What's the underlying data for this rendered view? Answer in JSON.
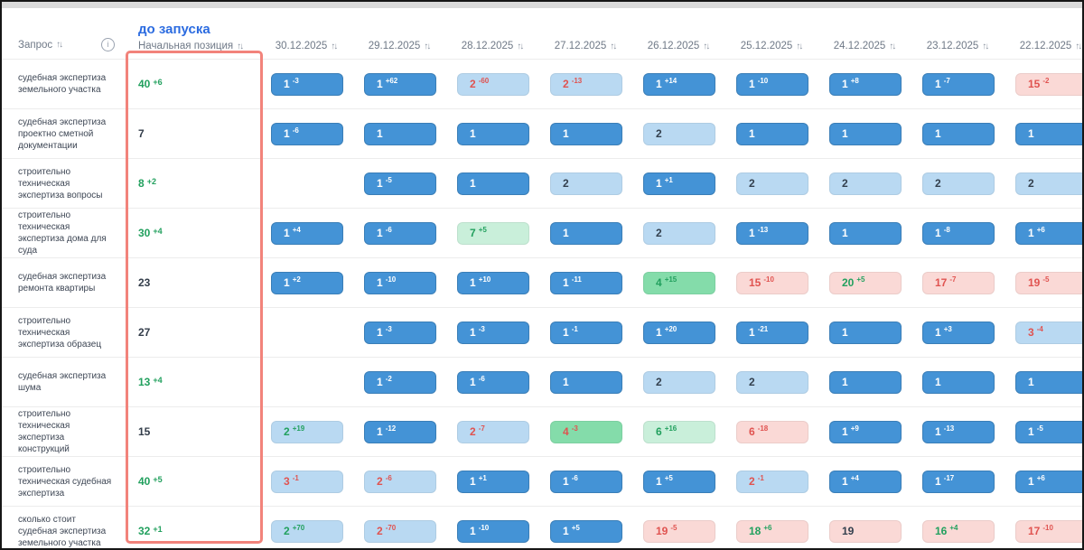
{
  "table": {
    "query_header": "Запрос",
    "sort_glyph": "↑↓",
    "info_glyph": "i",
    "pre_launch": "до запуска",
    "start_header": "Начальная позиция",
    "dates": [
      "30.12.2025",
      "29.12.2025",
      "28.12.2025",
      "27.12.2025",
      "26.12.2025",
      "25.12.2025",
      "24.12.2025",
      "23.12.2025",
      "22.12.2025"
    ],
    "rows": [
      {
        "query": "судебная экспертиза земельного участка",
        "start": {
          "v": "40",
          "d": "+6"
        },
        "cells": [
          {
            "v": "1",
            "d": "-3",
            "bg": "blue",
            "vc": "white",
            "dc": "white"
          },
          {
            "v": "1",
            "d": "+62",
            "bg": "blue",
            "vc": "white",
            "dc": "white"
          },
          {
            "v": "2",
            "d": "-60",
            "bg": "light",
            "vc": "red",
            "dc": "red"
          },
          {
            "v": "2",
            "d": "-13",
            "bg": "light",
            "vc": "red",
            "dc": "red"
          },
          {
            "v": "1",
            "d": "+14",
            "bg": "blue",
            "vc": "white",
            "dc": "white"
          },
          {
            "v": "1",
            "d": "-10",
            "bg": "blue",
            "vc": "white",
            "dc": "white"
          },
          {
            "v": "1",
            "d": "+8",
            "bg": "blue",
            "vc": "white",
            "dc": "white"
          },
          {
            "v": "1",
            "d": "-7",
            "bg": "blue",
            "vc": "white",
            "dc": "white"
          },
          {
            "v": "15",
            "d": "-2",
            "bg": "pink",
            "vc": "red",
            "dc": "red"
          }
        ]
      },
      {
        "query": "судебная экспертиза проектно сметной документации",
        "start": {
          "v": "7",
          "d": ""
        },
        "cells": [
          {
            "v": "1",
            "d": "-6",
            "bg": "blue",
            "vc": "white",
            "dc": "white"
          },
          {
            "v": "1",
            "d": "",
            "bg": "blue",
            "vc": "white",
            "dc": "white"
          },
          {
            "v": "1",
            "d": "",
            "bg": "blue",
            "vc": "white",
            "dc": "white"
          },
          {
            "v": "1",
            "d": "",
            "bg": "blue",
            "vc": "white",
            "dc": "white"
          },
          {
            "v": "2",
            "d": "",
            "bg": "light",
            "vc": "dark",
            "dc": "dark"
          },
          {
            "v": "1",
            "d": "",
            "bg": "blue",
            "vc": "white",
            "dc": "white"
          },
          {
            "v": "1",
            "d": "",
            "bg": "blue",
            "vc": "white",
            "dc": "white"
          },
          {
            "v": "1",
            "d": "",
            "bg": "blue",
            "vc": "white",
            "dc": "white"
          },
          {
            "v": "1",
            "d": "",
            "bg": "blue",
            "vc": "white",
            "dc": "white"
          }
        ]
      },
      {
        "query": "строительно техническая экспертиза вопросы",
        "start": {
          "v": "8",
          "d": "+2"
        },
        "cells": [
          null,
          {
            "v": "1",
            "d": "-5",
            "bg": "blue",
            "vc": "white",
            "dc": "white"
          },
          {
            "v": "1",
            "d": "",
            "bg": "blue",
            "vc": "white",
            "dc": "white"
          },
          {
            "v": "2",
            "d": "",
            "bg": "light",
            "vc": "dark",
            "dc": "dark"
          },
          {
            "v": "1",
            "d": "+1",
            "bg": "blue",
            "vc": "white",
            "dc": "white"
          },
          {
            "v": "2",
            "d": "",
            "bg": "light",
            "vc": "dark",
            "dc": "dark"
          },
          {
            "v": "2",
            "d": "",
            "bg": "light",
            "vc": "dark",
            "dc": "dark"
          },
          {
            "v": "2",
            "d": "",
            "bg": "light",
            "vc": "dark",
            "dc": "dark"
          },
          {
            "v": "2",
            "d": "",
            "bg": "light",
            "vc": "dark",
            "dc": "dark"
          }
        ]
      },
      {
        "query": "строительно техническая экспертиза дома для суда",
        "start": {
          "v": "30",
          "d": "+4"
        },
        "cells": [
          {
            "v": "1",
            "d": "+4",
            "bg": "blue",
            "vc": "white",
            "dc": "white"
          },
          {
            "v": "1",
            "d": "-6",
            "bg": "blue",
            "vc": "white",
            "dc": "white"
          },
          {
            "v": "7",
            "d": "+5",
            "bg": "mint",
            "vc": "green",
            "dc": "green"
          },
          {
            "v": "1",
            "d": "",
            "bg": "blue",
            "vc": "white",
            "dc": "white"
          },
          {
            "v": "2",
            "d": "",
            "bg": "light",
            "vc": "dark",
            "dc": "dark"
          },
          {
            "v": "1",
            "d": "-13",
            "bg": "blue",
            "vc": "white",
            "dc": "white"
          },
          {
            "v": "1",
            "d": "",
            "bg": "blue",
            "vc": "white",
            "dc": "white"
          },
          {
            "v": "1",
            "d": "-8",
            "bg": "blue",
            "vc": "white",
            "dc": "white"
          },
          {
            "v": "1",
            "d": "+6",
            "bg": "blue",
            "vc": "white",
            "dc": "white"
          }
        ]
      },
      {
        "query": "судебная экспертиза ремонта квартиры",
        "start": {
          "v": "23",
          "d": ""
        },
        "cells": [
          {
            "v": "1",
            "d": "+2",
            "bg": "blue",
            "vc": "white",
            "dc": "white"
          },
          {
            "v": "1",
            "d": "-10",
            "bg": "blue",
            "vc": "white",
            "dc": "white"
          },
          {
            "v": "1",
            "d": "+10",
            "bg": "blue",
            "vc": "white",
            "dc": "white"
          },
          {
            "v": "1",
            "d": "-11",
            "bg": "blue",
            "vc": "white",
            "dc": "white"
          },
          {
            "v": "4",
            "d": "+15",
            "bg": "green",
            "vc": "green",
            "dc": "green"
          },
          {
            "v": "15",
            "d": "-10",
            "bg": "pink",
            "vc": "red",
            "dc": "red"
          },
          {
            "v": "20",
            "d": "+5",
            "bg": "pink",
            "vc": "green",
            "dc": "green"
          },
          {
            "v": "17",
            "d": "-7",
            "bg": "pink",
            "vc": "red",
            "dc": "red"
          },
          {
            "v": "19",
            "d": "-5",
            "bg": "pink",
            "vc": "red",
            "dc": "red"
          }
        ]
      },
      {
        "query": "строительно техническая экспертиза образец",
        "start": {
          "v": "27",
          "d": ""
        },
        "cells": [
          null,
          {
            "v": "1",
            "d": "-3",
            "bg": "blue",
            "vc": "white",
            "dc": "white"
          },
          {
            "v": "1",
            "d": "-3",
            "bg": "blue",
            "vc": "white",
            "dc": "white"
          },
          {
            "v": "1",
            "d": "-1",
            "bg": "blue",
            "vc": "white",
            "dc": "white"
          },
          {
            "v": "1",
            "d": "+20",
            "bg": "blue",
            "vc": "white",
            "dc": "white"
          },
          {
            "v": "1",
            "d": "-21",
            "bg": "blue",
            "vc": "white",
            "dc": "white"
          },
          {
            "v": "1",
            "d": "",
            "bg": "blue",
            "vc": "white",
            "dc": "white"
          },
          {
            "v": "1",
            "d": "+3",
            "bg": "blue",
            "vc": "white",
            "dc": "white"
          },
          {
            "v": "3",
            "d": "-4",
            "bg": "light",
            "vc": "red",
            "dc": "red"
          }
        ]
      },
      {
        "query": "судебная экспертиза шума",
        "start": {
          "v": "13",
          "d": "+4"
        },
        "cells": [
          null,
          {
            "v": "1",
            "d": "-2",
            "bg": "blue",
            "vc": "white",
            "dc": "white"
          },
          {
            "v": "1",
            "d": "-6",
            "bg": "blue",
            "vc": "white",
            "dc": "white"
          },
          {
            "v": "1",
            "d": "",
            "bg": "blue",
            "vc": "white",
            "dc": "white"
          },
          {
            "v": "2",
            "d": "",
            "bg": "light",
            "vc": "dark",
            "dc": "dark"
          },
          {
            "v": "2",
            "d": "",
            "bg": "light",
            "vc": "dark",
            "dc": "dark"
          },
          {
            "v": "1",
            "d": "",
            "bg": "blue",
            "vc": "white",
            "dc": "white"
          },
          {
            "v": "1",
            "d": "",
            "bg": "blue",
            "vc": "white",
            "dc": "white"
          },
          {
            "v": "1",
            "d": "",
            "bg": "blue",
            "vc": "white",
            "dc": "white"
          }
        ]
      },
      {
        "query": "строительно техническая экспертиза конструкций",
        "start": {
          "v": "15",
          "d": ""
        },
        "cells": [
          {
            "v": "2",
            "d": "+19",
            "bg": "light",
            "vc": "green",
            "dc": "green"
          },
          {
            "v": "1",
            "d": "-12",
            "bg": "blue",
            "vc": "white",
            "dc": "white"
          },
          {
            "v": "2",
            "d": "-7",
            "bg": "light",
            "vc": "red",
            "dc": "red"
          },
          {
            "v": "4",
            "d": "-3",
            "bg": "green",
            "vc": "red",
            "dc": "red"
          },
          {
            "v": "6",
            "d": "+16",
            "bg": "mint",
            "vc": "green",
            "dc": "green"
          },
          {
            "v": "6",
            "d": "-18",
            "bg": "pink",
            "vc": "red",
            "dc": "red"
          },
          {
            "v": "1",
            "d": "+9",
            "bg": "blue",
            "vc": "white",
            "dc": "white"
          },
          {
            "v": "1",
            "d": "-13",
            "bg": "blue",
            "vc": "white",
            "dc": "white"
          },
          {
            "v": "1",
            "d": "-5",
            "bg": "blue",
            "vc": "white",
            "dc": "white"
          }
        ]
      },
      {
        "query": "строительно техническая судебная экспертиза",
        "start": {
          "v": "40",
          "d": "+5"
        },
        "cells": [
          {
            "v": "3",
            "d": "-1",
            "bg": "light",
            "vc": "red",
            "dc": "red"
          },
          {
            "v": "2",
            "d": "-6",
            "bg": "light",
            "vc": "red",
            "dc": "red"
          },
          {
            "v": "1",
            "d": "+1",
            "bg": "blue",
            "vc": "white",
            "dc": "white"
          },
          {
            "v": "1",
            "d": "-6",
            "bg": "blue",
            "vc": "white",
            "dc": "white"
          },
          {
            "v": "1",
            "d": "+5",
            "bg": "blue",
            "vc": "white",
            "dc": "white"
          },
          {
            "v": "2",
            "d": "-1",
            "bg": "light",
            "vc": "red",
            "dc": "red"
          },
          {
            "v": "1",
            "d": "+4",
            "bg": "blue",
            "vc": "white",
            "dc": "white"
          },
          {
            "v": "1",
            "d": "-17",
            "bg": "blue",
            "vc": "white",
            "dc": "white"
          },
          {
            "v": "1",
            "d": "+6",
            "bg": "blue",
            "vc": "white",
            "dc": "white"
          }
        ]
      },
      {
        "query": "сколько стоит судебная экспертиза земельного участка",
        "start": {
          "v": "32",
          "d": "+1"
        },
        "cells": [
          {
            "v": "2",
            "d": "+70",
            "bg": "light",
            "vc": "green",
            "dc": "green"
          },
          {
            "v": "2",
            "d": "-70",
            "bg": "light",
            "vc": "red",
            "dc": "red"
          },
          {
            "v": "1",
            "d": "-10",
            "bg": "blue",
            "vc": "white",
            "dc": "white"
          },
          {
            "v": "1",
            "d": "+5",
            "bg": "blue",
            "vc": "white",
            "dc": "white"
          },
          {
            "v": "19",
            "d": "-5",
            "bg": "pink",
            "vc": "red",
            "dc": "red"
          },
          {
            "v": "18",
            "d": "+6",
            "bg": "pink",
            "vc": "green",
            "dc": "green"
          },
          {
            "v": "19",
            "d": "",
            "bg": "pink",
            "vc": "dark",
            "dc": "dark"
          },
          {
            "v": "16",
            "d": "+4",
            "bg": "pink",
            "vc": "green",
            "dc": "green"
          },
          {
            "v": "17",
            "d": "-10",
            "bg": "pink",
            "vc": "red",
            "dc": "red"
          }
        ]
      }
    ]
  },
  "colors": {
    "badge_blue": "#4493d6",
    "badge_light": "#b9d9f2",
    "badge_green": "#84dcaa",
    "badge_mint": "#c9efda",
    "badge_pink": "#fad9d6",
    "red_text": "#e05350",
    "green_text": "#22a05e",
    "blue_title": "#2b6be0",
    "highlight_box": "#f2837b"
  }
}
